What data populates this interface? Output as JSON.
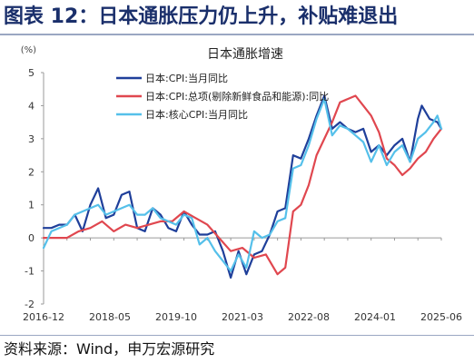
{
  "figure": {
    "title": "图表 12：日本通胀压力仍上升，补贴难退出",
    "source": "资料来源：Wind，申万宏源研究"
  },
  "chart_data": {
    "type": "line",
    "title": "日本通胀增速",
    "unit": "(%)",
    "xlabel": "",
    "ylabel": "",
    "ylim": [
      -2,
      5
    ],
    "yticks": [
      "-2",
      "-1",
      "0",
      "1",
      "2",
      "3",
      "4",
      "5"
    ],
    "xlim": [
      "2016-12",
      "2025-06"
    ],
    "xticks": [
      "2016-12",
      "2018-05",
      "2019-10",
      "2021-03",
      "2022-08",
      "2024-01",
      "2025-06"
    ],
    "grid": false,
    "legend_position": "top-left",
    "series": [
      {
        "name": "日本:CPI:当月同比",
        "color": "#1f3f9a",
        "points": [
          [
            "2016-12",
            0.3
          ],
          [
            "2017-02",
            0.3
          ],
          [
            "2017-04",
            0.4
          ],
          [
            "2017-06",
            0.4
          ],
          [
            "2017-08",
            0.7
          ],
          [
            "2017-10",
            0.2
          ],
          [
            "2017-12",
            1.0
          ],
          [
            "2018-02",
            1.5
          ],
          [
            "2018-04",
            0.6
          ],
          [
            "2018-06",
            0.7
          ],
          [
            "2018-08",
            1.3
          ],
          [
            "2018-10",
            1.4
          ],
          [
            "2018-12",
            0.3
          ],
          [
            "2019-02",
            0.2
          ],
          [
            "2019-04",
            0.9
          ],
          [
            "2019-06",
            0.7
          ],
          [
            "2019-08",
            0.3
          ],
          [
            "2019-10",
            0.2
          ],
          [
            "2019-12",
            0.8
          ],
          [
            "2020-02",
            0.4
          ],
          [
            "2020-04",
            0.1
          ],
          [
            "2020-06",
            0.1
          ],
          [
            "2020-08",
            0.2
          ],
          [
            "2020-10",
            -0.4
          ],
          [
            "2020-12",
            -1.2
          ],
          [
            "2021-02",
            -0.4
          ],
          [
            "2021-04",
            -1.1
          ],
          [
            "2021-06",
            -0.5
          ],
          [
            "2021-08",
            -0.4
          ],
          [
            "2021-10",
            0.1
          ],
          [
            "2021-12",
            0.8
          ],
          [
            "2022-02",
            0.9
          ],
          [
            "2022-04",
            2.5
          ],
          [
            "2022-06",
            2.4
          ],
          [
            "2022-08",
            3.0
          ],
          [
            "2022-10",
            3.7
          ],
          [
            "2022-12",
            4.3
          ],
          [
            "2023-02",
            3.3
          ],
          [
            "2023-04",
            3.5
          ],
          [
            "2023-06",
            3.3
          ],
          [
            "2023-08",
            3.2
          ],
          [
            "2023-10",
            3.3
          ],
          [
            "2023-12",
            2.6
          ],
          [
            "2024-02",
            2.8
          ],
          [
            "2024-04",
            2.5
          ],
          [
            "2024-06",
            2.8
          ],
          [
            "2024-08",
            3.0
          ],
          [
            "2024-10",
            2.3
          ],
          [
            "2024-12",
            3.6
          ],
          [
            "2025-01",
            4.0
          ],
          [
            "2025-03",
            3.6
          ],
          [
            "2025-05",
            3.5
          ],
          [
            "2025-06",
            3.3
          ]
        ]
      },
      {
        "name": "日本:CPI:总项(剔除新鲜食品和能源):同比",
        "color": "#e0474f",
        "points": [
          [
            "2016-12",
            0.0
          ],
          [
            "2017-03",
            0.0
          ],
          [
            "2017-06",
            0.0
          ],
          [
            "2017-09",
            0.2
          ],
          [
            "2017-12",
            0.3
          ],
          [
            "2018-03",
            0.5
          ],
          [
            "2018-06",
            0.2
          ],
          [
            "2018-09",
            0.4
          ],
          [
            "2018-12",
            0.3
          ],
          [
            "2019-03",
            0.4
          ],
          [
            "2019-06",
            0.5
          ],
          [
            "2019-09",
            0.5
          ],
          [
            "2019-12",
            0.8
          ],
          [
            "2020-03",
            0.6
          ],
          [
            "2020-06",
            0.4
          ],
          [
            "2020-09",
            0.0
          ],
          [
            "2020-12",
            -0.4
          ],
          [
            "2021-03",
            -0.3
          ],
          [
            "2021-06",
            -0.6
          ],
          [
            "2021-09",
            -0.5
          ],
          [
            "2021-12",
            -1.1
          ],
          [
            "2022-02",
            -0.9
          ],
          [
            "2022-04",
            0.8
          ],
          [
            "2022-06",
            1.0
          ],
          [
            "2022-08",
            1.6
          ],
          [
            "2022-10",
            2.5
          ],
          [
            "2022-12",
            3.0
          ],
          [
            "2023-02",
            3.5
          ],
          [
            "2023-04",
            4.1
          ],
          [
            "2023-06",
            4.2
          ],
          [
            "2023-08",
            4.3
          ],
          [
            "2023-10",
            4.0
          ],
          [
            "2023-12",
            3.7
          ],
          [
            "2024-02",
            3.2
          ],
          [
            "2024-04",
            2.4
          ],
          [
            "2024-06",
            2.2
          ],
          [
            "2024-08",
            1.9
          ],
          [
            "2024-10",
            2.1
          ],
          [
            "2024-12",
            2.4
          ],
          [
            "2025-02",
            2.6
          ],
          [
            "2025-04",
            3.0
          ],
          [
            "2025-06",
            3.3
          ]
        ]
      },
      {
        "name": "日本:核心CPI:当月同比",
        "color": "#55c0ea",
        "points": [
          [
            "2016-12",
            -0.3
          ],
          [
            "2017-02",
            0.2
          ],
          [
            "2017-04",
            0.3
          ],
          [
            "2017-06",
            0.4
          ],
          [
            "2017-08",
            0.7
          ],
          [
            "2017-10",
            0.8
          ],
          [
            "2017-12",
            0.9
          ],
          [
            "2018-02",
            1.0
          ],
          [
            "2018-04",
            0.7
          ],
          [
            "2018-06",
            0.8
          ],
          [
            "2018-08",
            0.9
          ],
          [
            "2018-10",
            1.0
          ],
          [
            "2018-12",
            0.7
          ],
          [
            "2019-02",
            0.7
          ],
          [
            "2019-04",
            0.9
          ],
          [
            "2019-06",
            0.6
          ],
          [
            "2019-08",
            0.5
          ],
          [
            "2019-10",
            0.4
          ],
          [
            "2019-12",
            0.7
          ],
          [
            "2020-02",
            0.6
          ],
          [
            "2020-04",
            -0.2
          ],
          [
            "2020-06",
            0.0
          ],
          [
            "2020-08",
            -0.4
          ],
          [
            "2020-10",
            -0.7
          ],
          [
            "2020-12",
            -1.0
          ],
          [
            "2021-02",
            -0.5
          ],
          [
            "2021-04",
            -0.9
          ],
          [
            "2021-06",
            0.2
          ],
          [
            "2021-08",
            0.0
          ],
          [
            "2021-10",
            0.1
          ],
          [
            "2021-12",
            0.5
          ],
          [
            "2022-02",
            0.6
          ],
          [
            "2022-04",
            2.1
          ],
          [
            "2022-06",
            2.2
          ],
          [
            "2022-08",
            2.8
          ],
          [
            "2022-10",
            3.6
          ],
          [
            "2022-12",
            4.2
          ],
          [
            "2023-02",
            3.1
          ],
          [
            "2023-04",
            3.4
          ],
          [
            "2023-06",
            3.3
          ],
          [
            "2023-08",
            3.1
          ],
          [
            "2023-10",
            2.9
          ],
          [
            "2023-12",
            2.3
          ],
          [
            "2024-02",
            2.8
          ],
          [
            "2024-04",
            2.2
          ],
          [
            "2024-06",
            2.6
          ],
          [
            "2024-08",
            2.8
          ],
          [
            "2024-10",
            2.3
          ],
          [
            "2024-12",
            3.0
          ],
          [
            "2025-02",
            3.2
          ],
          [
            "2025-04",
            3.5
          ],
          [
            "2025-05",
            3.7
          ],
          [
            "2025-06",
            3.3
          ]
        ]
      }
    ]
  }
}
